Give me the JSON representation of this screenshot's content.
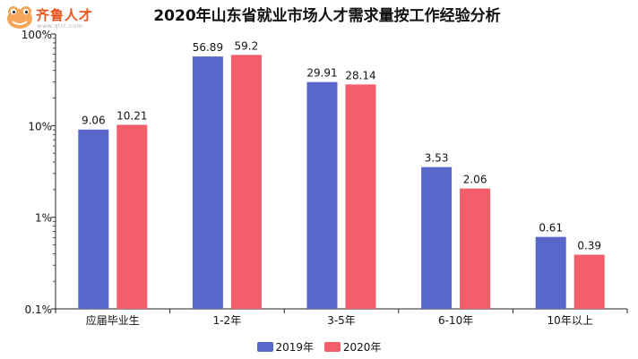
{
  "logo": {
    "brand": "齐鲁人才",
    "url": "www.qlrc.com"
  },
  "colors": {
    "series_2019": "#5867c9",
    "series_2020": "#f25f6b",
    "logo_accent": "#e8541e"
  },
  "chart_data": {
    "type": "bar",
    "title": "2020年山东省就业市场人才需求量按工作经验分析",
    "categories": [
      "应届毕业生",
      "1-2年",
      "3-5年",
      "6-10年",
      "10年以上"
    ],
    "series": [
      {
        "name": "2019年",
        "values": [
          9.06,
          56.89,
          29.91,
          3.53,
          0.61
        ],
        "labels": [
          "9.06",
          "56.89",
          "29.91",
          "3.53",
          "0.61"
        ]
      },
      {
        "name": "2020年",
        "values": [
          10.21,
          59.2,
          28.14,
          2.06,
          0.39
        ],
        "labels": [
          "10.21",
          "59.2",
          "28.14",
          "2.06",
          "0.39"
        ]
      }
    ],
    "y_scale": "log",
    "ylim": [
      0.1,
      100
    ],
    "y_ticks": [
      100,
      10,
      1,
      0.1
    ],
    "y_tick_labels": [
      "100%",
      "10%",
      "1%",
      "0.1%"
    ],
    "legend_position": "bottom",
    "grid": false
  }
}
